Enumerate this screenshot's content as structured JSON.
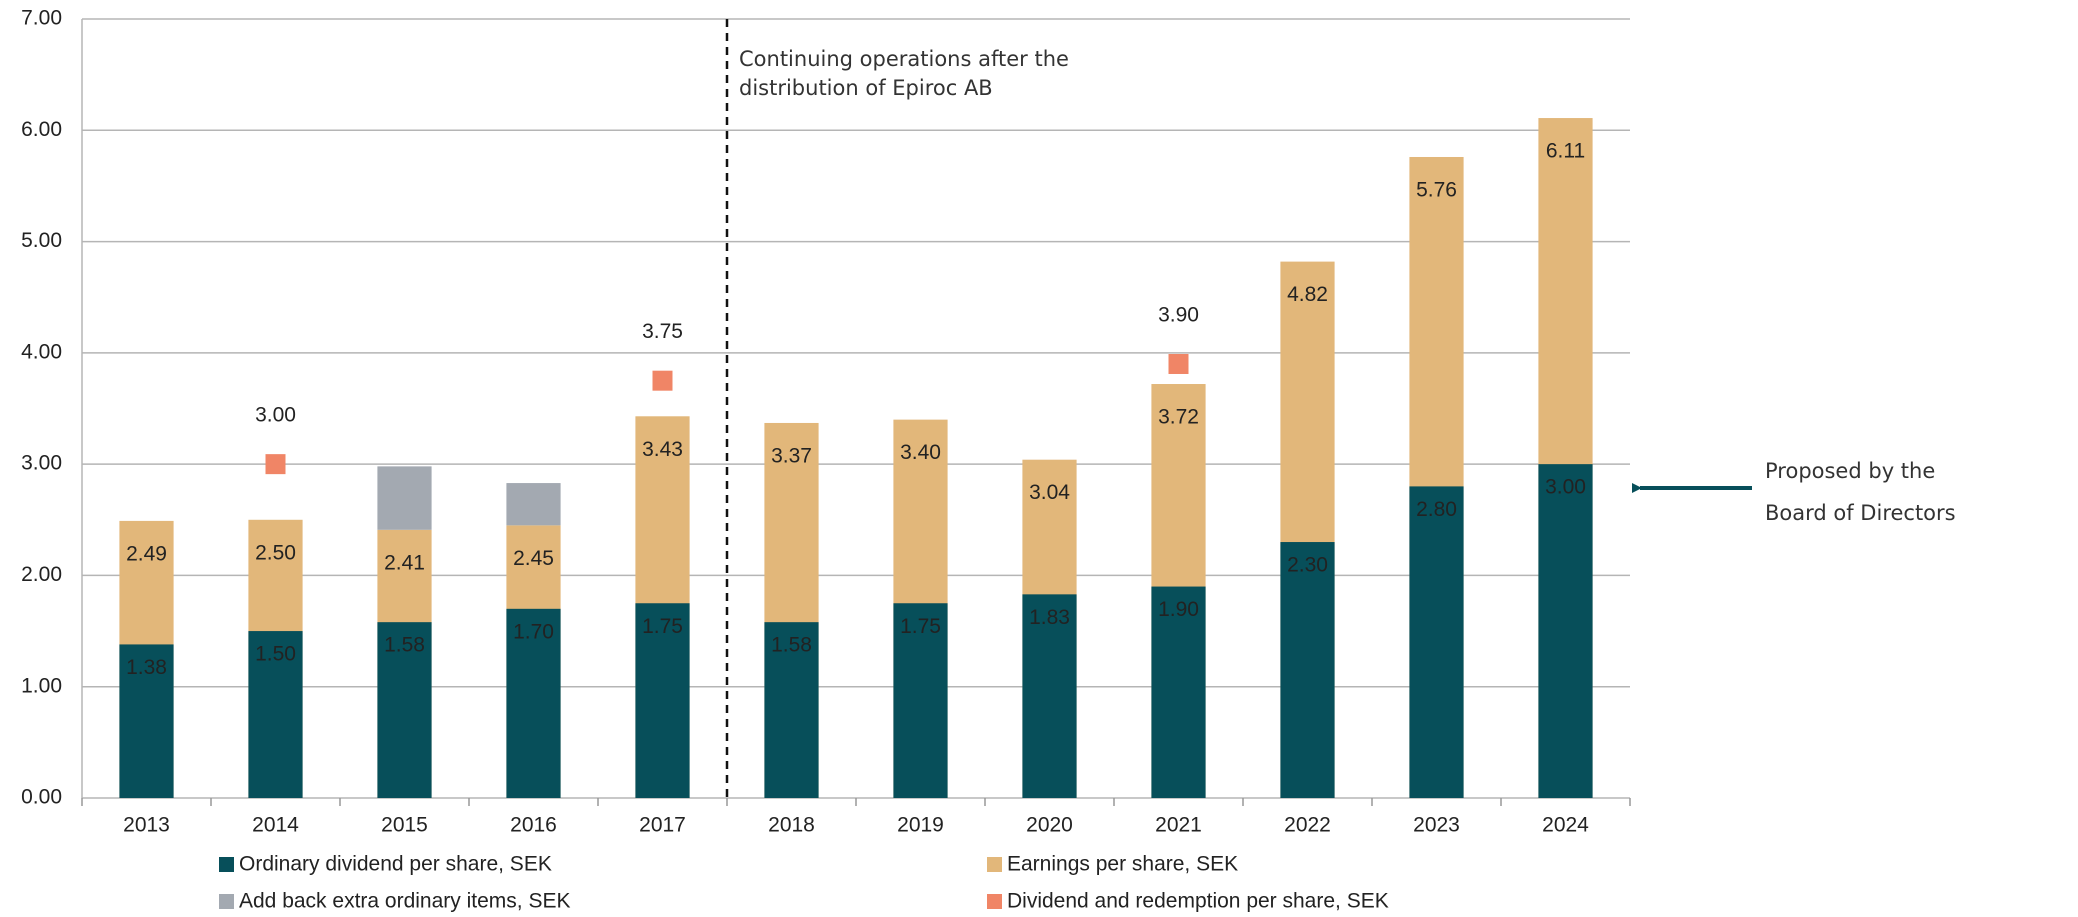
{
  "chart_data": {
    "type": "bar",
    "categories": [
      "2013",
      "2014",
      "2015",
      "2016",
      "2017",
      "2018",
      "2019",
      "2020",
      "2021",
      "2022",
      "2023",
      "2024"
    ],
    "series": [
      {
        "name": "Ordinary dividend per share, SEK",
        "color": "#074f5a",
        "values": [
          1.38,
          1.5,
          1.58,
          1.7,
          1.75,
          1.58,
          1.75,
          1.83,
          1.9,
          2.3,
          2.8,
          3.0
        ],
        "value_labels": [
          "1.38",
          "1.50",
          "1.58",
          "1.70",
          "1.75",
          "1.58",
          "1.75",
          "1.83",
          "1.90",
          "2.30",
          "2.80",
          "3.00"
        ]
      },
      {
        "name": "Earnings per share, SEK",
        "color": "#e2b77a",
        "values": [
          2.49,
          2.5,
          2.41,
          2.45,
          3.43,
          3.37,
          3.4,
          3.04,
          3.72,
          4.82,
          5.76,
          6.11
        ],
        "value_labels": [
          "2.49",
          "2.50",
          "2.41",
          "2.45",
          "3.43",
          "3.37",
          "3.40",
          "3.04",
          "3.72",
          "4.82",
          "5.76",
          "6.11"
        ]
      },
      {
        "name": "Add back extra ordinary items, SEK",
        "color": "#a3a9b1",
        "stacked_on": 1,
        "values": [
          null,
          null,
          0.57,
          0.38,
          null,
          null,
          null,
          null,
          null,
          null,
          null,
          null
        ]
      },
      {
        "name": "Dividend and redemption per share, SEK",
        "color": "#f08566",
        "marker": "square",
        "values": [
          null,
          3.0,
          null,
          null,
          3.75,
          null,
          null,
          null,
          3.9,
          null,
          null,
          null
        ],
        "value_labels": [
          null,
          "3.00",
          null,
          null,
          "3.75",
          null,
          null,
          null,
          "3.90",
          null,
          null,
          null
        ]
      }
    ],
    "ylim": [
      0,
      7
    ],
    "yticks": [
      {
        "value": 0,
        "label": "0.00"
      },
      {
        "value": 1,
        "label": "1.00"
      },
      {
        "value": 2,
        "label": "2.00"
      },
      {
        "value": 3,
        "label": "3.00"
      },
      {
        "value": 4,
        "label": "4.00"
      },
      {
        "value": 5,
        "label": "5.00"
      },
      {
        "value": 6,
        "label": "6.00"
      },
      {
        "value": 7,
        "label": "7.00"
      }
    ],
    "grid": true,
    "annotations": [
      {
        "lines": [
          "Continuing operations after the",
          "distribution of Epiroc AB"
        ]
      },
      {
        "lines": [
          "Proposed by the",
          "Board of Directors"
        ]
      }
    ]
  }
}
